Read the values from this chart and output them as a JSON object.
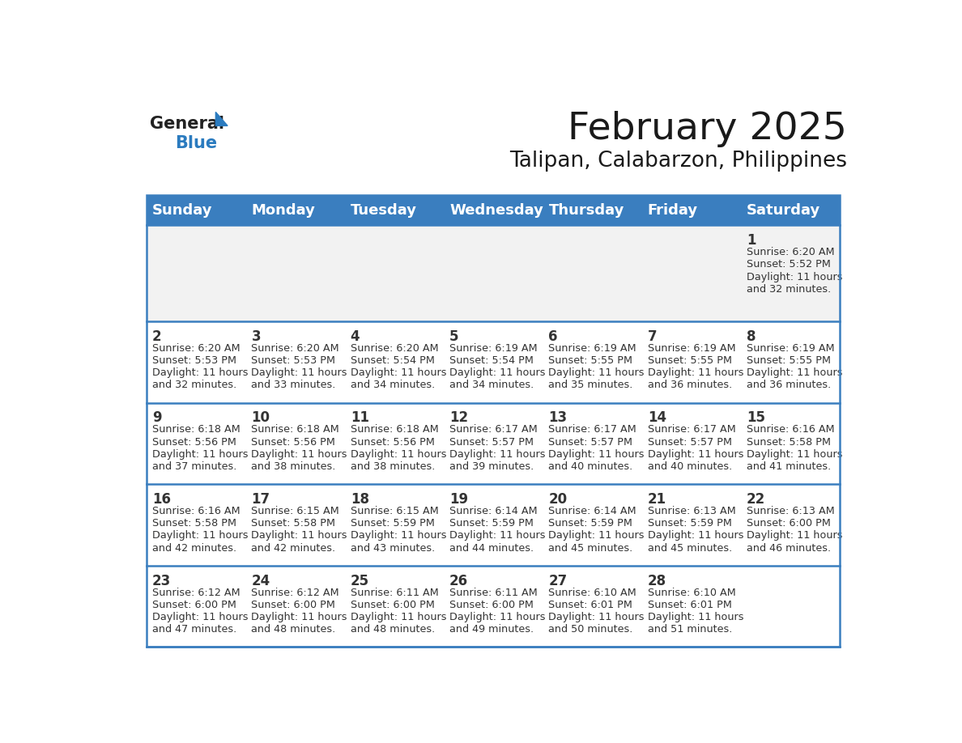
{
  "title": "February 2025",
  "subtitle": "Talipan, Calabarzon, Philippines",
  "header_bg_color": "#3a7ebf",
  "header_text_color": "#ffffff",
  "days_of_week": [
    "Sunday",
    "Monday",
    "Tuesday",
    "Wednesday",
    "Thursday",
    "Friday",
    "Saturday"
  ],
  "bg_color": "#ffffff",
  "alt_row_color": "#f2f2f2",
  "cell_text_color": "#333333",
  "divider_color": "#3a7ebf",
  "logo_general_color": "#222222",
  "logo_blue_color": "#2b7bbf",
  "calendar_data": [
    [
      null,
      null,
      null,
      null,
      null,
      null,
      {
        "day": 1,
        "sunrise": "6:20 AM",
        "sunset": "5:52 PM",
        "daylight_line1": "Daylight: 11 hours",
        "daylight_line2": "and 32 minutes."
      }
    ],
    [
      {
        "day": 2,
        "sunrise": "6:20 AM",
        "sunset": "5:53 PM",
        "daylight_line1": "Daylight: 11 hours",
        "daylight_line2": "and 32 minutes."
      },
      {
        "day": 3,
        "sunrise": "6:20 AM",
        "sunset": "5:53 PM",
        "daylight_line1": "Daylight: 11 hours",
        "daylight_line2": "and 33 minutes."
      },
      {
        "day": 4,
        "sunrise": "6:20 AM",
        "sunset": "5:54 PM",
        "daylight_line1": "Daylight: 11 hours",
        "daylight_line2": "and 34 minutes."
      },
      {
        "day": 5,
        "sunrise": "6:19 AM",
        "sunset": "5:54 PM",
        "daylight_line1": "Daylight: 11 hours",
        "daylight_line2": "and 34 minutes."
      },
      {
        "day": 6,
        "sunrise": "6:19 AM",
        "sunset": "5:55 PM",
        "daylight_line1": "Daylight: 11 hours",
        "daylight_line2": "and 35 minutes."
      },
      {
        "day": 7,
        "sunrise": "6:19 AM",
        "sunset": "5:55 PM",
        "daylight_line1": "Daylight: 11 hours",
        "daylight_line2": "and 36 minutes."
      },
      {
        "day": 8,
        "sunrise": "6:19 AM",
        "sunset": "5:55 PM",
        "daylight_line1": "Daylight: 11 hours",
        "daylight_line2": "and 36 minutes."
      }
    ],
    [
      {
        "day": 9,
        "sunrise": "6:18 AM",
        "sunset": "5:56 PM",
        "daylight_line1": "Daylight: 11 hours",
        "daylight_line2": "and 37 minutes."
      },
      {
        "day": 10,
        "sunrise": "6:18 AM",
        "sunset": "5:56 PM",
        "daylight_line1": "Daylight: 11 hours",
        "daylight_line2": "and 38 minutes."
      },
      {
        "day": 11,
        "sunrise": "6:18 AM",
        "sunset": "5:56 PM",
        "daylight_line1": "Daylight: 11 hours",
        "daylight_line2": "and 38 minutes."
      },
      {
        "day": 12,
        "sunrise": "6:17 AM",
        "sunset": "5:57 PM",
        "daylight_line1": "Daylight: 11 hours",
        "daylight_line2": "and 39 minutes."
      },
      {
        "day": 13,
        "sunrise": "6:17 AM",
        "sunset": "5:57 PM",
        "daylight_line1": "Daylight: 11 hours",
        "daylight_line2": "and 40 minutes."
      },
      {
        "day": 14,
        "sunrise": "6:17 AM",
        "sunset": "5:57 PM",
        "daylight_line1": "Daylight: 11 hours",
        "daylight_line2": "and 40 minutes."
      },
      {
        "day": 15,
        "sunrise": "6:16 AM",
        "sunset": "5:58 PM",
        "daylight_line1": "Daylight: 11 hours",
        "daylight_line2": "and 41 minutes."
      }
    ],
    [
      {
        "day": 16,
        "sunrise": "6:16 AM",
        "sunset": "5:58 PM",
        "daylight_line1": "Daylight: 11 hours",
        "daylight_line2": "and 42 minutes."
      },
      {
        "day": 17,
        "sunrise": "6:15 AM",
        "sunset": "5:58 PM",
        "daylight_line1": "Daylight: 11 hours",
        "daylight_line2": "and 42 minutes."
      },
      {
        "day": 18,
        "sunrise": "6:15 AM",
        "sunset": "5:59 PM",
        "daylight_line1": "Daylight: 11 hours",
        "daylight_line2": "and 43 minutes."
      },
      {
        "day": 19,
        "sunrise": "6:14 AM",
        "sunset": "5:59 PM",
        "daylight_line1": "Daylight: 11 hours",
        "daylight_line2": "and 44 minutes."
      },
      {
        "day": 20,
        "sunrise": "6:14 AM",
        "sunset": "5:59 PM",
        "daylight_line1": "Daylight: 11 hours",
        "daylight_line2": "and 45 minutes."
      },
      {
        "day": 21,
        "sunrise": "6:13 AM",
        "sunset": "5:59 PM",
        "daylight_line1": "Daylight: 11 hours",
        "daylight_line2": "and 45 minutes."
      },
      {
        "day": 22,
        "sunrise": "6:13 AM",
        "sunset": "6:00 PM",
        "daylight_line1": "Daylight: 11 hours",
        "daylight_line2": "and 46 minutes."
      }
    ],
    [
      {
        "day": 23,
        "sunrise": "6:12 AM",
        "sunset": "6:00 PM",
        "daylight_line1": "Daylight: 11 hours",
        "daylight_line2": "and 47 minutes."
      },
      {
        "day": 24,
        "sunrise": "6:12 AM",
        "sunset": "6:00 PM",
        "daylight_line1": "Daylight: 11 hours",
        "daylight_line2": "and 48 minutes."
      },
      {
        "day": 25,
        "sunrise": "6:11 AM",
        "sunset": "6:00 PM",
        "daylight_line1": "Daylight: 11 hours",
        "daylight_line2": "and 48 minutes."
      },
      {
        "day": 26,
        "sunrise": "6:11 AM",
        "sunset": "6:00 PM",
        "daylight_line1": "Daylight: 11 hours",
        "daylight_line2": "and 49 minutes."
      },
      {
        "day": 27,
        "sunrise": "6:10 AM",
        "sunset": "6:01 PM",
        "daylight_line1": "Daylight: 11 hours",
        "daylight_line2": "and 50 minutes."
      },
      {
        "day": 28,
        "sunrise": "6:10 AM",
        "sunset": "6:01 PM",
        "daylight_line1": "Daylight: 11 hours",
        "daylight_line2": "and 51 minutes."
      },
      null
    ]
  ]
}
